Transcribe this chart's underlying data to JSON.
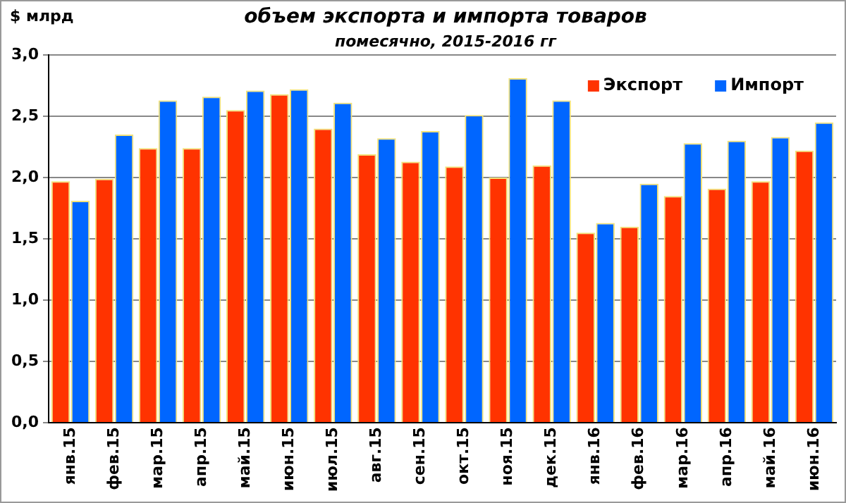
{
  "chart_data": {
    "type": "bar",
    "title": "объем экспорта и импорта товаров",
    "subtitle": "помесячно, 2015-2016 гг",
    "ylabel": "$ млрд",
    "categories": [
      "янв.15",
      "фев.15",
      "мар.15",
      "апр.15",
      "май.15",
      "июн.15",
      "июл.15",
      "авг.15",
      "сен.15",
      "окт.15",
      "ноя.15",
      "дек.15",
      "янв.16",
      "фев.16",
      "мар.16",
      "апр.16",
      "май.16",
      "июн.16"
    ],
    "series": [
      {
        "name": "Экспорт",
        "color": "#ff3300",
        "values": [
          1.97,
          1.99,
          2.24,
          2.24,
          2.55,
          2.68,
          2.4,
          2.19,
          2.13,
          2.09,
          2.0,
          2.1,
          1.55,
          1.6,
          1.85,
          1.91,
          1.97,
          2.22
        ]
      },
      {
        "name": "Импорт",
        "color": "#0066ff",
        "values": [
          1.81,
          2.35,
          2.63,
          2.66,
          2.71,
          2.72,
          2.61,
          2.32,
          2.38,
          2.51,
          2.81,
          2.63,
          1.63,
          1.95,
          2.28,
          2.3,
          2.33,
          2.45
        ]
      }
    ],
    "ylim": [
      0,
      3
    ],
    "yticks": [
      {
        "value": 0,
        "label": "0,0"
      },
      {
        "value": 0.5,
        "label": "0,5"
      },
      {
        "value": 1,
        "label": "1,0"
      },
      {
        "value": 1.5,
        "label": "1,5"
      },
      {
        "value": 2,
        "label": "2,0"
      },
      {
        "value": 2.5,
        "label": "2,5"
      },
      {
        "value": 3,
        "label": "3,0"
      }
    ],
    "grid": "y",
    "legend": "top right"
  }
}
